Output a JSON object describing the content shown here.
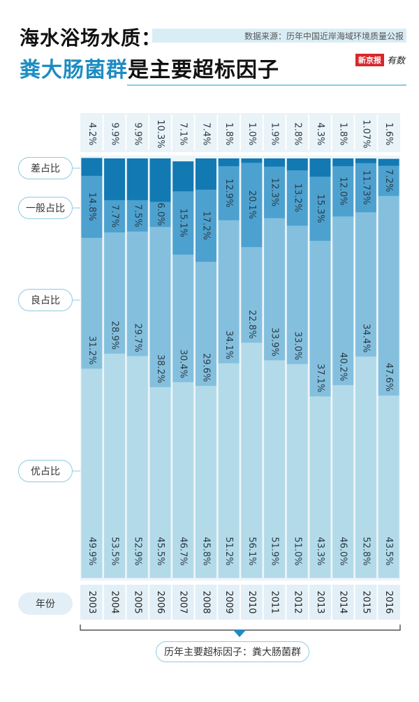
{
  "header": {
    "title_line1": "海水浴场水质：",
    "title_line2_highlight": "粪大肠菌群",
    "title_line2_rest": "是主要超标因子",
    "source": "数据来源：历年中国近岸海域环境质量公报",
    "brand_box": "新京报",
    "brand_text": "有数"
  },
  "legend_labels": {
    "poor": "差占比",
    "fair": "一般占比",
    "good": "良占比",
    "excellent": "优占比",
    "year": "年份"
  },
  "footer_label": "历年主要超标因子：粪大肠菌群",
  "colors": {
    "excellent": "#b3dae9",
    "good": "#84c0de",
    "fair": "#4da1cf",
    "poor": "#1279b3",
    "accent": "#1d8cc2"
  },
  "chart_data": {
    "type": "bar",
    "stacked": true,
    "orientation": "vertical",
    "ylim": [
      0,
      100
    ],
    "grid": false,
    "categories": [
      "2003",
      "2004",
      "2005",
      "2006",
      "2007",
      "2008",
      "2009",
      "2010",
      "2011",
      "2012",
      "2013",
      "2014",
      "2015",
      "2016"
    ],
    "series": [
      {
        "name": "优占比",
        "values": [
          49.9,
          53.5,
          52.9,
          45.5,
          46.7,
          45.8,
          51.2,
          56.1,
          51.9,
          51.0,
          43.3,
          46.0,
          52.8,
          43.5
        ],
        "labels": [
          "49.9%",
          "53.5%",
          "52.9%",
          "45.5%",
          "46.7%",
          "45.8%",
          "51.2%",
          "56.1%",
          "51.9%",
          "51.0%",
          "43.3%",
          "46.0%",
          "52.8%",
          "43.5%"
        ]
      },
      {
        "name": "良占比",
        "values": [
          31.2,
          28.9,
          29.7,
          38.2,
          30.4,
          29.6,
          34.1,
          22.8,
          33.9,
          33.0,
          37.1,
          40.2,
          34.4,
          47.6
        ],
        "labels": [
          "31.2%",
          "28.9%",
          "29.7%",
          "38.2%",
          "30.4%",
          "29.6%",
          "34.1%",
          "22.8%",
          "33.9%",
          "33.0%",
          "37.1%",
          "40.2%",
          "34.4%",
          "47.6%"
        ]
      },
      {
        "name": "一般占比",
        "values": [
          14.8,
          7.7,
          7.5,
          6.0,
          15.1,
          17.2,
          12.9,
          20.1,
          12.3,
          13.2,
          15.3,
          12.0,
          11.73,
          7.2
        ],
        "labels": [
          "14.8%",
          "7.7%",
          "7.5%",
          "6.0%",
          "15.1%",
          "17.2%",
          "12.9%",
          "20.1%",
          "12.3%",
          "13.2%",
          "15.3%",
          "12.0%",
          "11.73%",
          "7.2%"
        ]
      },
      {
        "name": "差占比",
        "values": [
          4.2,
          9.9,
          9.9,
          10.3,
          7.1,
          7.4,
          1.8,
          1.0,
          1.9,
          2.8,
          4.3,
          1.8,
          1.07,
          1.6
        ],
        "labels": [
          "4.2%",
          "9.9%",
          "9.9%",
          "10.3%",
          "7.1%",
          "7.4%",
          "1.8%",
          "1.0%",
          "1.9%",
          "2.8%",
          "4.3%",
          "1.8%",
          "1.07%",
          "1.6%"
        ]
      }
    ]
  }
}
